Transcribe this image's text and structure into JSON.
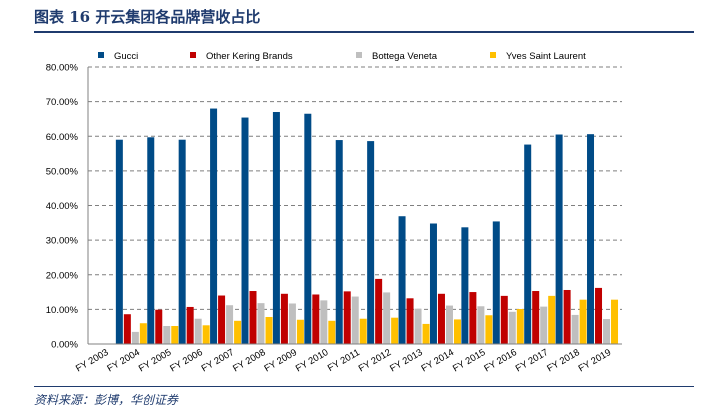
{
  "figure": {
    "title": "图表 16   开云集团各品牌营收占比",
    "source": "资料来源：彭博，华创证券"
  },
  "colors": {
    "gucci": "#004b87",
    "other_kering": "#c00000",
    "bottega": "#bfbfbf",
    "ysl": "#ffc000",
    "grid": "#7f7f7f",
    "title": "#1f3b6e"
  },
  "chart_data": {
    "type": "bar",
    "title": "",
    "xlabel": "",
    "ylabel": "",
    "ylim": [
      0,
      80
    ],
    "y_ticks": [
      "0.00%",
      "10.00%",
      "20.00%",
      "30.00%",
      "40.00%",
      "50.00%",
      "60.00%",
      "70.00%",
      "80.00%"
    ],
    "grid": true,
    "legend_position": "top",
    "categories": [
      "FY 2003",
      "FY 2004",
      "FY 2005",
      "FY 2006",
      "FY 2007",
      "FY 2008",
      "FY 2009",
      "FY 2010",
      "FY 2011",
      "FY 2012",
      "FY 2013",
      "FY 2014",
      "FY 2015",
      "FY 2016",
      "FY 2017",
      "FY 2018",
      "FY 2019"
    ],
    "series": [
      {
        "name": "Gucci",
        "color": "#004b87",
        "values": [
          59.0,
          59.7,
          59.0,
          68.0,
          65.4,
          67.0,
          66.5,
          58.9,
          58.6,
          36.9,
          34.8,
          33.7,
          35.4,
          57.6,
          60.5,
          60.6,
          null
        ]
      },
      {
        "name": "Other Kering Brands",
        "color": "#c00000",
        "values": [
          8.6,
          9.9,
          10.7,
          14.0,
          15.3,
          14.5,
          14.3,
          15.2,
          18.8,
          13.2,
          14.5,
          15.0,
          13.9,
          15.3,
          15.6,
          16.2,
          null
        ]
      },
      {
        "name": "Bottega Veneta",
        "color": "#bfbfbf",
        "values": [
          3.5,
          5.2,
          7.3,
          11.2,
          11.8,
          11.7,
          12.6,
          13.7,
          14.9,
          10.2,
          11.1,
          10.9,
          9.3,
          10.8,
          8.4,
          7.2,
          null
        ]
      },
      {
        "name": "Yves Saint Laurent",
        "color": "#ffc000",
        "values": [
          6.0,
          5.2,
          5.4,
          6.7,
          7.8,
          7.0,
          6.7,
          7.3,
          7.6,
          5.8,
          7.1,
          8.3,
          10.1,
          13.9,
          12.8,
          12.8,
          null
        ]
      }
    ]
  }
}
